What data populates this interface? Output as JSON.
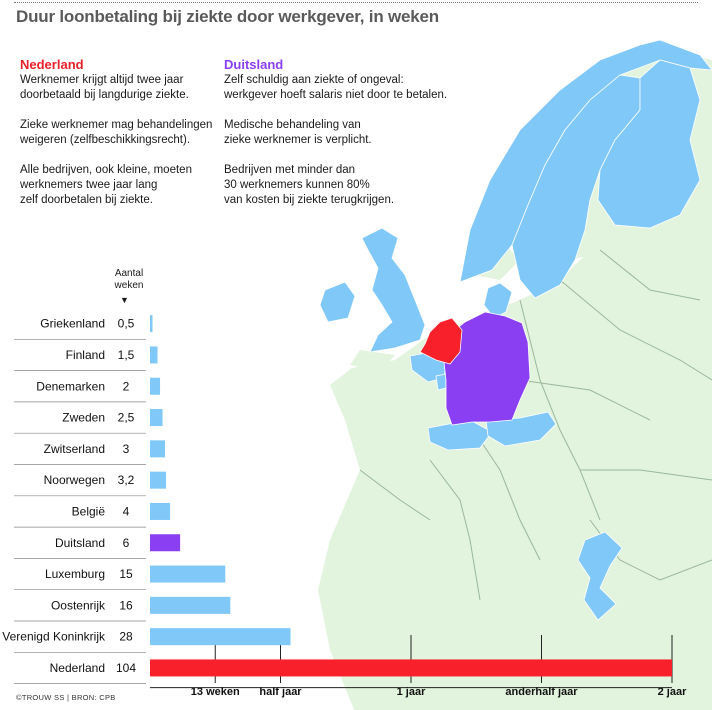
{
  "title": "Duur loonbetaling bij ziekte door werkgever, in weken",
  "nederland": {
    "heading": "Nederland",
    "paragraphs": [
      "Werknemer krijgt altijd twee jaar\ndoorbetaald bij langdurige ziekte.",
      "Zieke werknemer mag behandelingen\nweigeren (zelfbeschikkingsrecht).",
      "Alle bedrijven, ook kleine, moeten\nwerknemers twee jaar lang\nzelf doorbetalen bij ziekte."
    ]
  },
  "duitsland": {
    "heading": "Duitsland",
    "paragraphs": [
      "Zelf schuldig aan ziekte of ongeval:\nwerkgever hoeft salaris niet door te betalen.",
      "Medische behandeling van\nzieke werknemer is verplicht.",
      "Bedrijven met minder dan\n30 werknemers kunnen 80%\nvan kosten bij ziekte terugkrijgen."
    ]
  },
  "unit_label": "Aantal\nweken",
  "unit_arrow": "▼",
  "credit": "©TROUW SS | BRON: CPB",
  "colors": {
    "default_bar": "#80c8f8",
    "duitsland": "#8a3ff2",
    "nederland": "#f8202a",
    "map_land": "#e2f4de",
    "map_border": "#9ab79a"
  },
  "chart_data": {
    "type": "bar",
    "orientation": "horizontal",
    "title": "Duur loonbetaling bij ziekte door werkgever, in weken",
    "categories": [
      "Griekenland",
      "Finland",
      "Denemarken",
      "Zweden",
      "Zwitserland",
      "Noorwegen",
      "België",
      "Duitsland",
      "Luxemburg",
      "Oostenrijk",
      "Verenigd Koninkrijk",
      "Nederland"
    ],
    "value_labels": [
      "0,5",
      "1,5",
      "2",
      "2,5",
      "3",
      "3,2",
      "4",
      "6",
      "15",
      "16",
      "28",
      "104"
    ],
    "values": [
      0.5,
      1.5,
      2,
      2.5,
      3,
      3.2,
      4,
      6,
      15,
      16,
      28,
      104
    ],
    "highlight": {
      "Duitsland": "#8a3ff2",
      "Nederland": "#f8202a"
    },
    "xlim": [
      0,
      104
    ],
    "reference_ticks": [
      {
        "value": 13,
        "label": "13 weken"
      },
      {
        "value": 26,
        "label": "half jaar"
      },
      {
        "value": 52,
        "label": "1 jaar"
      },
      {
        "value": 78,
        "label": "anderhalf jaar"
      },
      {
        "value": 104,
        "label": "2 jaar"
      }
    ],
    "xlabel": "",
    "ylabel": "Aantal weken"
  },
  "map": {
    "highlighted_countries": {
      "light_blue": [
        "Noorwegen",
        "Zweden",
        "Finland",
        "Denemarken",
        "Verenigd Koninkrijk",
        "België",
        "Luxemburg",
        "Zwitserland",
        "Oostenrijk",
        "Griekenland"
      ],
      "purple": [
        "Duitsland"
      ],
      "red": [
        "Nederland"
      ]
    }
  }
}
